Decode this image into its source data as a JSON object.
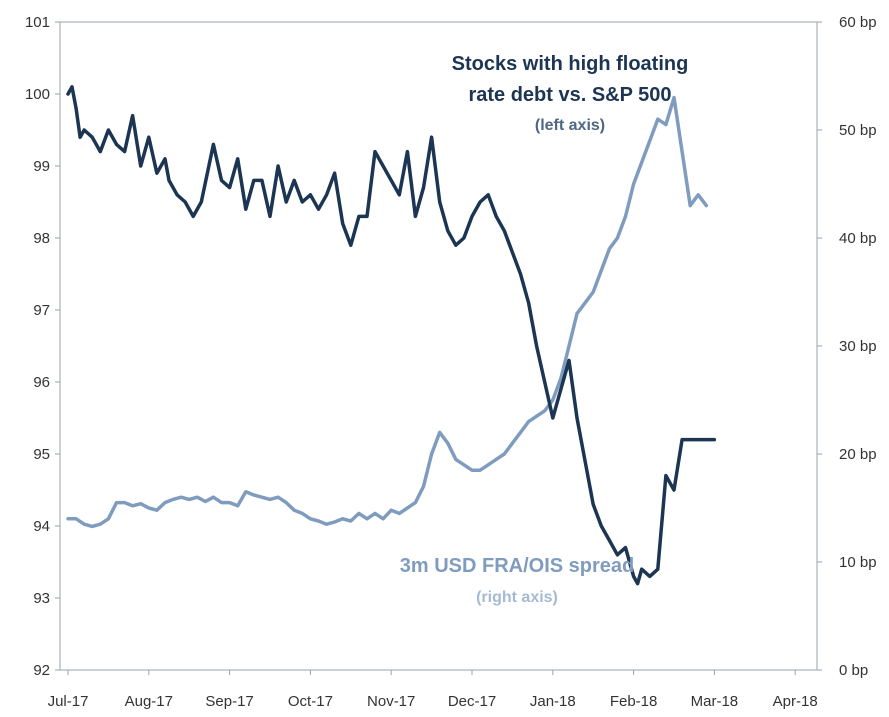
{
  "chart_data": {
    "type": "line",
    "title": "",
    "x_categories": [
      "Jul-17",
      "Aug-17",
      "Sep-17",
      "Oct-17",
      "Nov-17",
      "Dec-17",
      "Jan-18",
      "Feb-18",
      "Mar-18",
      "Apr-18"
    ],
    "left_axis": {
      "min": 92,
      "max": 101,
      "ticks": [
        "92",
        "93",
        "94",
        "95",
        "96",
        "97",
        "98",
        "99",
        "100",
        "101"
      ]
    },
    "right_axis": {
      "min": 0,
      "max": 60,
      "ticks": [
        "0 bp",
        "10 bp",
        "20 bp",
        "30 bp",
        "40 bp",
        "50 bp",
        "60 bp"
      ]
    },
    "grid": false,
    "colors": {
      "dark": "#1c3553",
      "light": "#7f9cbf"
    },
    "series": [
      {
        "id": "stocks",
        "axis": "left",
        "label_lines": [
          "Stocks with high floating",
          "rate debt vs. S&P 500",
          "(left axis)"
        ],
        "x": [
          0.0,
          0.05,
          0.1,
          0.15,
          0.2,
          0.3,
          0.4,
          0.5,
          0.6,
          0.7,
          0.8,
          0.9,
          1.0,
          1.1,
          1.2,
          1.25,
          1.35,
          1.45,
          1.55,
          1.65,
          1.8,
          1.9,
          2.0,
          2.1,
          2.2,
          2.3,
          2.4,
          2.5,
          2.6,
          2.7,
          2.8,
          2.9,
          3.0,
          3.1,
          3.2,
          3.3,
          3.4,
          3.5,
          3.6,
          3.7,
          3.8,
          3.9,
          4.0,
          4.1,
          4.2,
          4.3,
          4.4,
          4.5,
          4.6,
          4.7,
          4.8,
          4.9,
          5.0,
          5.1,
          5.2,
          5.3,
          5.4,
          5.5,
          5.6,
          5.7,
          5.8,
          5.9,
          6.0,
          6.1,
          6.2,
          6.3,
          6.4,
          6.5,
          6.6,
          6.7,
          6.8,
          6.9,
          7.0,
          7.05,
          7.1,
          7.2,
          7.3,
          7.4,
          7.5,
          7.6,
          7.7,
          7.8,
          7.9,
          8.0,
          8.1,
          8.2,
          8.3,
          8.4,
          8.5,
          8.55,
          8.6,
          8.7,
          8.75,
          8.8,
          8.9,
          8.95
        ],
        "y": [
          100.0,
          100.1,
          99.8,
          99.4,
          99.5,
          99.4,
          99.2,
          99.5,
          99.3,
          99.2,
          99.7,
          99.0,
          99.4,
          98.9,
          99.1,
          98.8,
          98.6,
          98.5,
          98.3,
          98.5,
          99.3,
          98.8,
          98.7,
          99.1,
          98.4,
          98.8,
          98.8,
          98.3,
          99.0,
          98.5,
          98.8,
          98.5,
          98.6,
          98.4,
          98.6,
          98.9,
          98.2,
          97.9,
          98.3,
          98.3,
          99.2,
          99.0,
          98.8,
          98.6,
          99.2,
          98.3,
          98.7,
          99.4,
          98.5,
          98.1,
          97.9,
          98.0,
          98.3,
          98.5,
          98.6,
          98.3,
          98.1,
          97.8,
          97.5,
          97.1,
          96.5,
          96.0,
          95.5,
          95.9,
          96.3,
          95.5,
          94.9,
          94.3,
          94.0,
          93.8,
          93.6,
          93.7,
          93.3,
          93.2,
          93.4,
          93.3,
          93.4,
          94.7,
          94.5,
          95.2,
          95.2,
          95.2,
          95.2,
          95.2,
          95.2,
          95.2,
          95.2,
          95.2,
          95.2,
          95.2,
          95.2,
          95.2,
          95.2,
          95.2,
          95.2,
          95.2
        ],
        "x_end": 8.0
      },
      {
        "id": "fra_ois",
        "axis": "right",
        "label_lines": [
          "3m USD FRA/OIS spread",
          "(right axis)"
        ],
        "x": [
          0.0,
          0.1,
          0.2,
          0.3,
          0.4,
          0.5,
          0.6,
          0.7,
          0.8,
          0.9,
          1.0,
          1.1,
          1.2,
          1.3,
          1.4,
          1.5,
          1.6,
          1.7,
          1.8,
          1.9,
          2.0,
          2.1,
          2.2,
          2.3,
          2.4,
          2.5,
          2.6,
          2.7,
          2.8,
          2.9,
          3.0,
          3.1,
          3.2,
          3.3,
          3.4,
          3.5,
          3.6,
          3.7,
          3.8,
          3.9,
          4.0,
          4.1,
          4.2,
          4.3,
          4.4,
          4.5,
          4.6,
          4.7,
          4.8,
          4.9,
          5.0,
          5.1,
          5.2,
          5.3,
          5.4,
          5.5,
          5.6,
          5.7,
          5.8,
          5.9,
          6.0,
          6.1,
          6.2,
          6.3,
          6.4,
          6.5,
          6.6,
          6.7,
          6.8,
          6.9,
          7.0,
          7.1,
          7.2,
          7.3,
          7.4,
          7.5,
          7.6,
          7.7,
          7.8,
          7.9,
          8.0,
          8.1,
          8.2,
          8.3,
          8.4
        ],
        "y": [
          14.0,
          14.0,
          13.5,
          13.3,
          13.5,
          14.0,
          15.5,
          15.5,
          15.2,
          15.4,
          15.0,
          14.8,
          15.5,
          15.8,
          16.0,
          15.8,
          16.0,
          15.6,
          16.0,
          15.5,
          15.5,
          15.2,
          16.5,
          16.2,
          16.0,
          15.8,
          16.0,
          15.5,
          14.8,
          14.5,
          14.0,
          13.8,
          13.5,
          13.7,
          14.0,
          13.8,
          14.5,
          14.0,
          14.5,
          14.0,
          14.8,
          14.5,
          15.0,
          15.5,
          17.0,
          20.0,
          22.0,
          21.0,
          19.5,
          19.0,
          18.5,
          18.5,
          19.0,
          19.5,
          20.0,
          21.0,
          22.0,
          23.0,
          23.5,
          24.0,
          25.0,
          27.0,
          30.0,
          33.0,
          34.0,
          35.0,
          37.0,
          39.0,
          40.0,
          42.0,
          45.0,
          47.0,
          49.0,
          51.0,
          50.5,
          53.0,
          48.0,
          43.0,
          44.0,
          43.0,
          41.0,
          42.5,
          42.5,
          42.5,
          42.5
        ],
        "x_end": 7.9
      }
    ]
  }
}
